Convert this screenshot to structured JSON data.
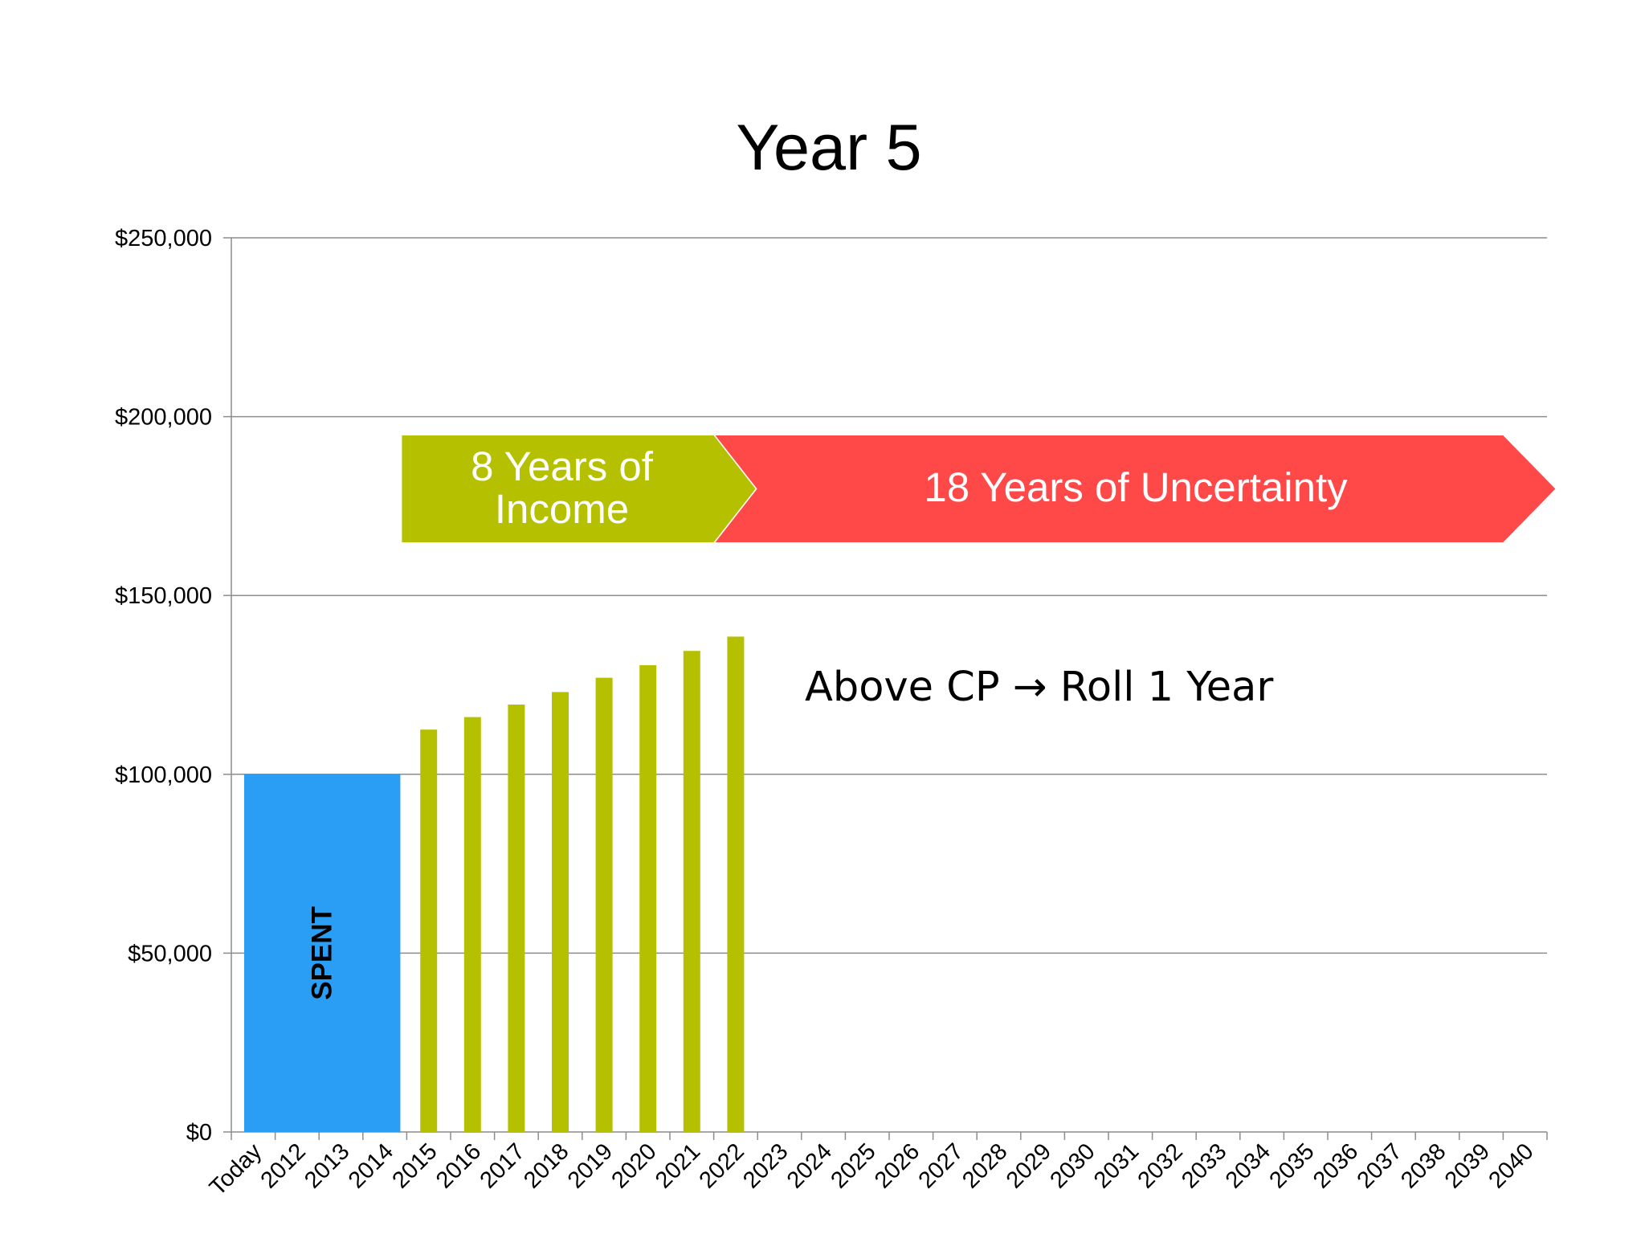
{
  "chart_data": {
    "type": "bar",
    "title": "Year 5",
    "xlabel": "",
    "ylabel": "",
    "ylim": [
      0,
      250000
    ],
    "yticks": [
      "$0",
      "$50,000",
      "$100,000",
      "$150,000",
      "$200,000",
      "$250,000"
    ],
    "ytick_values": [
      0,
      50000,
      100000,
      150000,
      200000,
      250000
    ],
    "grid": true,
    "categories": [
      "Today",
      "2012",
      "2013",
      "2014",
      "2015",
      "2016",
      "2017",
      "2018",
      "2019",
      "2020",
      "2021",
      "2022",
      "2023",
      "2024",
      "2025",
      "2026",
      "2027",
      "2028",
      "2029",
      "2030",
      "2031",
      "2032",
      "2033",
      "2034",
      "2035",
      "2036",
      "2037",
      "2038",
      "2039",
      "2040"
    ],
    "spent": {
      "label": "SPENT",
      "value": 100000,
      "from_category": "Today",
      "to_category": "2014",
      "color": "#2a9df4"
    },
    "series": [
      {
        "color": "#b5c000",
        "values": [
          null,
          null,
          null,
          null,
          112500,
          116000,
          119500,
          123000,
          127000,
          130500,
          134500,
          138500,
          null,
          null,
          null,
          null,
          null,
          null,
          null,
          null,
          null,
          null,
          null,
          null,
          null,
          null,
          null,
          null,
          null,
          null
        ]
      }
    ],
    "arrows": [
      {
        "line1": "8 Years of",
        "line2": "Income",
        "from_category": "2015",
        "to_category": "2021",
        "color": "#b5c000"
      },
      {
        "text": "18 Years of Uncertainty",
        "from_category": "2022",
        "to_category": "2039",
        "color": "#ff4949"
      }
    ],
    "annotation": "Above CP → Roll 1 Year"
  }
}
